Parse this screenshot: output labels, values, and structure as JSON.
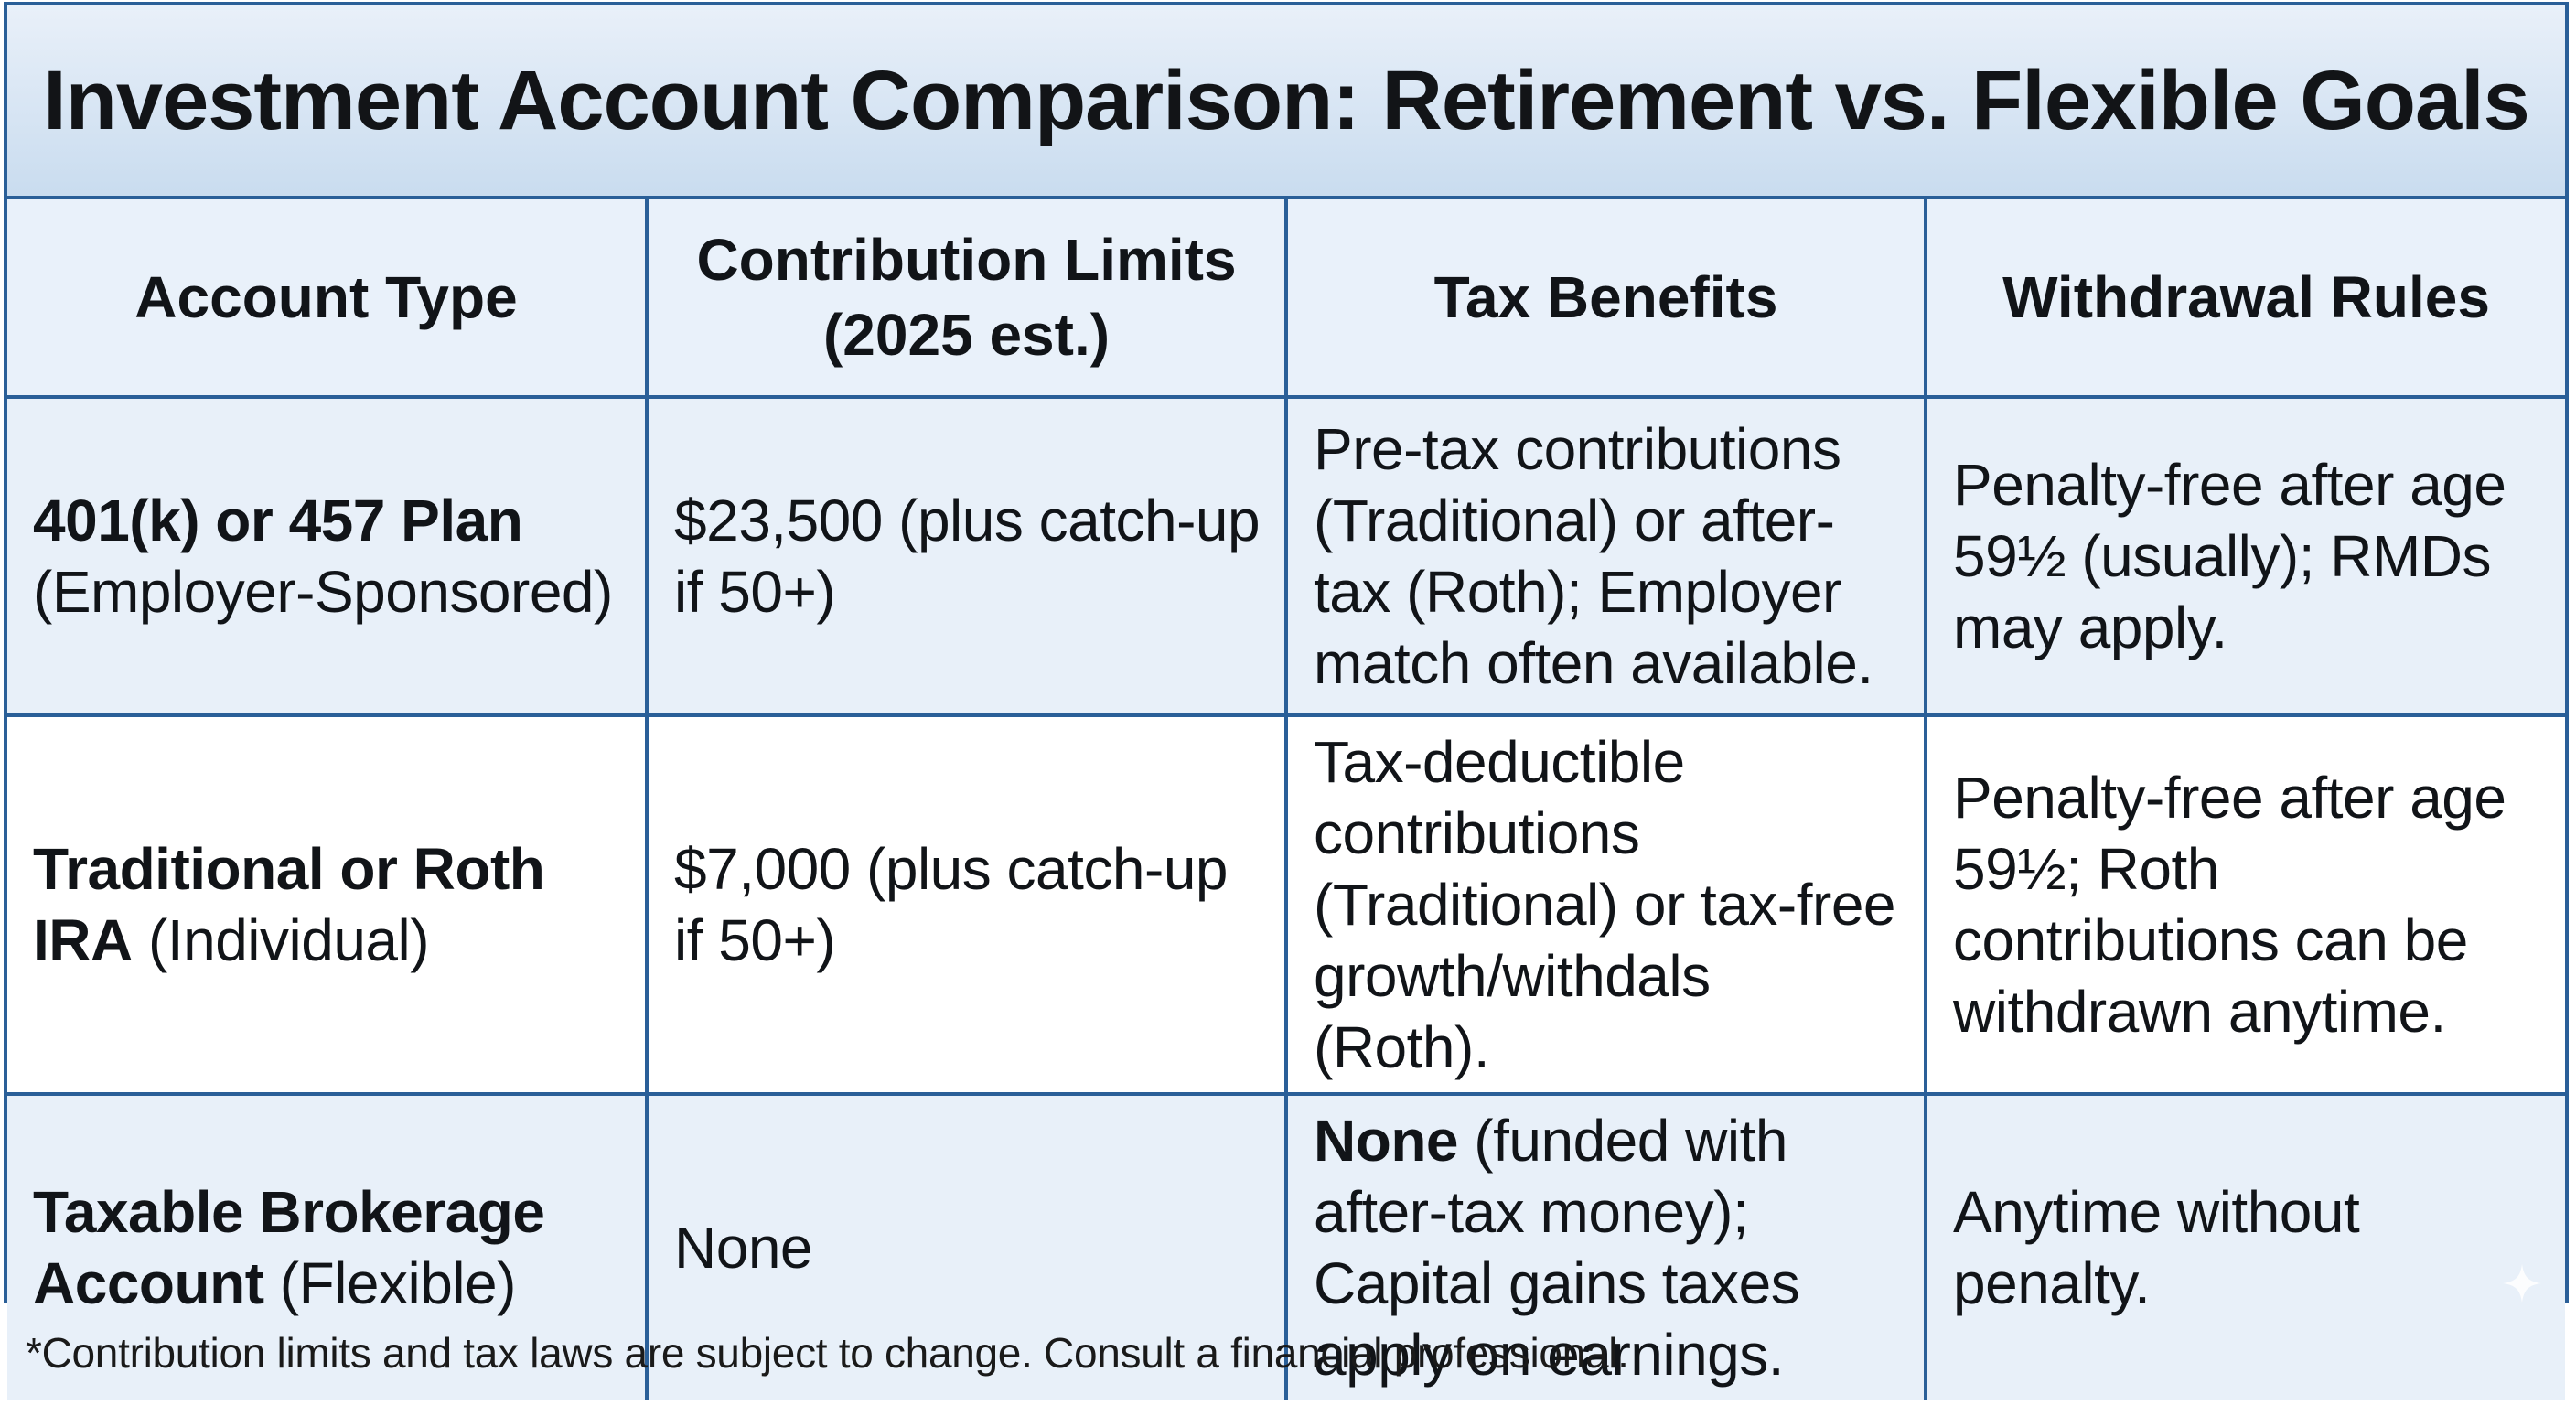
{
  "title": "Investment Account Comparison: Retirement vs. Flexible Goals",
  "headers": {
    "account_type": "Account Type",
    "contribution_limits_line1": "Contribution Limits",
    "contribution_limits_line2": "(2025 est.)",
    "tax_benefits": "Tax Benefits",
    "withdrawal_rules": "Withdrawal Rules"
  },
  "rows": [
    {
      "account_name": "401(k) or 457 Plan",
      "account_note": "(Employer-Sponsored)",
      "contribution": "$23,500 (plus catch-up if 50+)",
      "tax_bold": "",
      "tax_text": "Pre-tax contributions (Traditional) or after-tax (Roth); Employer match often available.",
      "withdrawal": "Penalty-free after age 59½ (usually); RMDs may apply."
    },
    {
      "account_name": "Traditional or Roth IRA",
      "account_note": "(Individual)",
      "contribution": "$7,000 (plus catch-up if 50+)",
      "tax_bold": "",
      "tax_text": "Tax-deductible contributions (Traditional) or tax-free growth/withdals (Roth).",
      "withdrawal": "Penalty-free after age 59½; Roth contributions can be withdrawn anytime."
    },
    {
      "account_name": "Taxable Brokerage Account",
      "account_note": "(Flexible)",
      "contribution": "None",
      "tax_bold": "None",
      "tax_text": "(funded with after-tax money); Capital gains taxes apply on earnings.",
      "withdrawal": "Anytime without penalty."
    }
  ],
  "footnote": "*Contribution limits and tax laws are subject to change. Consult a financial professional.",
  "colors": {
    "border": "#2a5f98",
    "title_bg_top": "#e9f0f9",
    "title_bg_bottom": "#c9dcef",
    "shaded_row": "#e8f0f9",
    "white_row": "#ffffff"
  },
  "icons": {
    "corner_mark": "sparkle-icon"
  }
}
